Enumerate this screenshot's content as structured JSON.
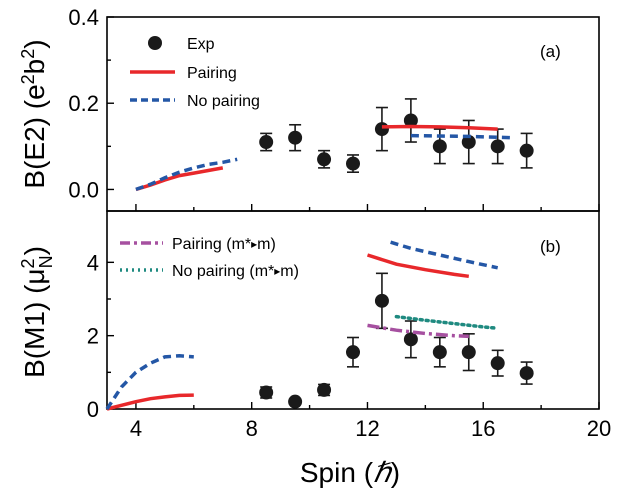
{
  "colors": {
    "exp": "#1a1a1a",
    "pairing": "#e8282b",
    "no_pairing": "#2457a6",
    "pairing_mstar": "#a650a0",
    "no_pairing_mstar": "#1f8a80"
  },
  "xaxis": {
    "label": "Spin (ℏ)",
    "xlim": [
      3,
      20
    ],
    "ticks": [
      4,
      8,
      12,
      16,
      20
    ],
    "tick_labels": [
      "4",
      "8",
      "12",
      "16",
      "20"
    ]
  },
  "chart_data": [
    {
      "type": "scatter",
      "panel_label": "(a)",
      "ylabel": "B(E2) (e²b²)",
      "ylim": [
        -0.05,
        0.4
      ],
      "yticks": [
        0.0,
        0.2,
        0.4
      ],
      "ytick_labels": [
        "0.0",
        "0.2",
        "0.4"
      ],
      "legend": [
        "Exp",
        "Pairing",
        "No pairing"
      ],
      "series": [
        {
          "name": "Exp",
          "style": "marker",
          "x": [
            8.5,
            9.5,
            10.5,
            11.5,
            12.5,
            13.5,
            14.5,
            15.5,
            16.5,
            17.5
          ],
          "y": [
            0.11,
            0.12,
            0.07,
            0.06,
            0.14,
            0.16,
            0.1,
            0.11,
            0.1,
            0.09
          ],
          "err": [
            0.02,
            0.03,
            0.02,
            0.02,
            0.05,
            0.05,
            0.04,
            0.05,
            0.04,
            0.04
          ]
        },
        {
          "name": "Pairing",
          "style": "solid",
          "segments": [
            {
              "x": [
                4.0,
                4.5,
                5.0,
                5.5,
                6.0,
                6.5,
                7.0
              ],
              "y": [
                0.0,
                0.01,
                0.022,
                0.032,
                0.038,
                0.044,
                0.05
              ]
            },
            {
              "x": [
                12.5,
                13.5,
                14.5,
                15.5,
                16.5
              ],
              "y": [
                0.145,
                0.146,
                0.145,
                0.143,
                0.14
              ]
            }
          ]
        },
        {
          "name": "No pairing",
          "style": "dashed",
          "segments": [
            {
              "x": [
                4.0,
                4.5,
                5.0,
                5.5,
                6.0,
                6.5,
                7.0,
                7.5
              ],
              "y": [
                0.0,
                0.012,
                0.027,
                0.04,
                0.05,
                0.058,
                0.063,
                0.07
              ]
            },
            {
              "x": [
                13.5,
                14.5,
                15.5,
                16.5,
                17.0
              ],
              "y": [
                0.125,
                0.124,
                0.123,
                0.121,
                0.12
              ]
            }
          ]
        }
      ]
    },
    {
      "type": "scatter",
      "panel_label": "(b)",
      "ylabel": "B(M1) (μ²N)",
      "ylim": [
        0,
        5.4
      ],
      "yticks": [
        0,
        2,
        4
      ],
      "ytick_labels": [
        "0",
        "2",
        "4"
      ],
      "legend": [
        "Pairing (m*→m)",
        "No pairing (m*→m)"
      ],
      "series": [
        {
          "name": "Exp",
          "style": "marker",
          "x": [
            8.5,
            9.5,
            10.5,
            11.5,
            12.5,
            13.5,
            14.5,
            15.5,
            16.5,
            17.5
          ],
          "y": [
            0.45,
            0.2,
            0.52,
            1.55,
            2.95,
            1.9,
            1.55,
            1.55,
            1.25,
            0.98
          ],
          "err": [
            0.15,
            0.0,
            0.15,
            0.4,
            0.75,
            0.5,
            0.4,
            0.5,
            0.35,
            0.3
          ]
        },
        {
          "name": "Pairing",
          "style": "solid",
          "segments": [
            {
              "x": [
                3.0,
                3.5,
                4.0,
                4.5,
                5.0,
                5.5,
                6.0
              ],
              "y": [
                0.0,
                0.1,
                0.2,
                0.28,
                0.33,
                0.37,
                0.38
              ]
            },
            {
              "x": [
                12.0,
                13.0,
                14.0,
                15.0,
                15.5
              ],
              "y": [
                4.2,
                3.95,
                3.8,
                3.67,
                3.62
              ]
            }
          ]
        },
        {
          "name": "No pairing",
          "style": "dashed",
          "segments": [
            {
              "x": [
                3.0,
                3.5,
                4.0,
                4.5,
                5.0,
                5.5,
                6.0
              ],
              "y": [
                0.0,
                0.6,
                1.0,
                1.25,
                1.42,
                1.45,
                1.42
              ]
            },
            {
              "x": [
                12.8,
                13.5,
                14.5,
                15.5,
                16.5
              ],
              "y": [
                4.55,
                4.38,
                4.2,
                4.02,
                3.85
              ]
            }
          ]
        },
        {
          "name": "Pairing (m*→m)",
          "style": "dashdot",
          "segments": [
            {
              "x": [
                12.0,
                13.0,
                14.0,
                15.0,
                15.5
              ],
              "y": [
                2.28,
                2.15,
                2.06,
                2.0,
                1.98
              ]
            }
          ]
        },
        {
          "name": "No pairing (m*→m)",
          "style": "dotted",
          "segments": [
            {
              "x": [
                13.0,
                14.0,
                15.0,
                16.0,
                16.5
              ],
              "y": [
                2.52,
                2.42,
                2.33,
                2.24,
                2.2
              ]
            }
          ]
        }
      ]
    }
  ]
}
